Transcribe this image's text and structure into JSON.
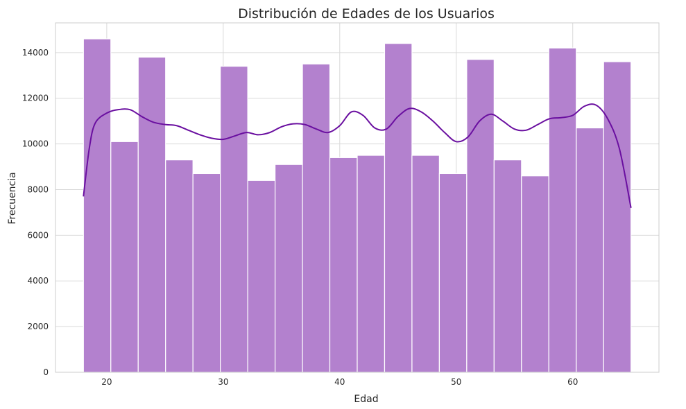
{
  "chart_data": {
    "type": "bar",
    "title": "Distribución de Edades de los Usuarios",
    "xlabel": "Edad",
    "ylabel": "Frecuencia",
    "xlim": [
      15.6,
      67.4
    ],
    "ylim": [
      0,
      15300
    ],
    "xticks": [
      20,
      30,
      40,
      50,
      60
    ],
    "yticks": [
      0,
      2000,
      4000,
      6000,
      8000,
      10000,
      12000,
      14000
    ],
    "grid": true,
    "bins": {
      "start": 18,
      "end": 65,
      "values": [
        14600,
        10100,
        13800,
        9300,
        8700,
        13400,
        8400,
        9100,
        13500,
        9400,
        9500,
        14400,
        9500,
        8700,
        13700,
        9300,
        8600,
        14200,
        10700,
        13600
      ]
    },
    "kde": {
      "x": [
        18,
        18.5,
        19,
        20,
        21,
        22,
        23,
        24,
        25,
        26,
        27,
        28,
        29,
        30,
        31,
        32,
        33,
        34,
        35,
        36,
        37,
        38,
        39,
        40,
        41,
        42,
        43,
        44,
        45,
        46,
        47,
        48,
        49,
        50,
        51,
        52,
        53,
        54,
        55,
        56,
        57,
        58,
        59,
        60,
        61,
        62,
        63,
        64,
        65
      ],
      "y": [
        7700,
        9800,
        10900,
        11350,
        11500,
        11500,
        11200,
        10950,
        10850,
        10800,
        10600,
        10400,
        10250,
        10200,
        10350,
        10500,
        10400,
        10500,
        10750,
        10880,
        10850,
        10650,
        10500,
        10800,
        11400,
        11250,
        10700,
        10650,
        11200,
        11550,
        11400,
        11000,
        10500,
        10100,
        10300,
        11000,
        11300,
        11000,
        10650,
        10600,
        10850,
        11100,
        11150,
        11250,
        11650,
        11700,
        11100,
        9800,
        7200
      ]
    },
    "colors": {
      "bar": "#b381ce",
      "bar_edge": "#ffffff",
      "kde": "#6a0fa0",
      "grid": "#d9d9d9",
      "frame": "#cccccc"
    }
  }
}
